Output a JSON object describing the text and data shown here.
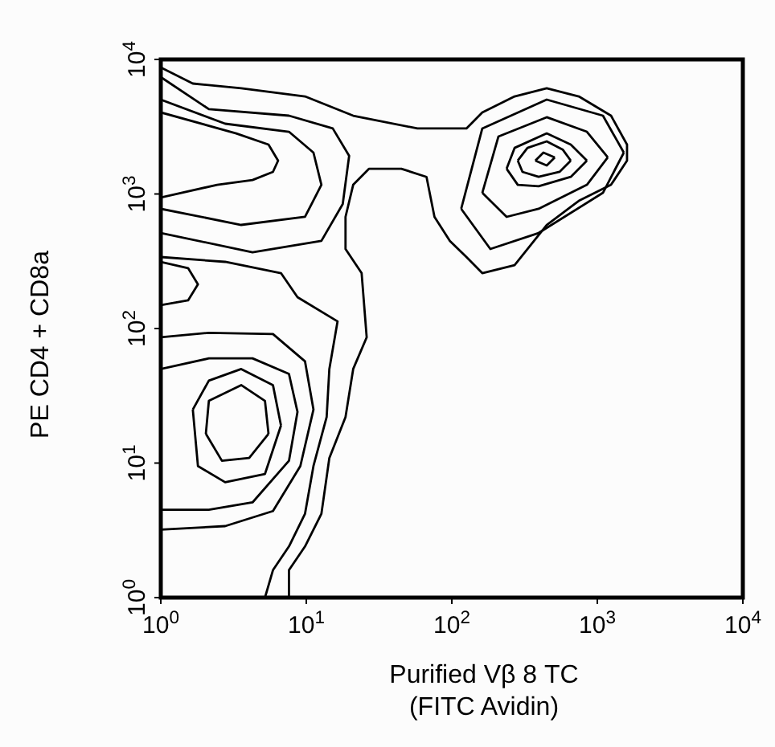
{
  "chart_data": {
    "type": "line",
    "xlabel": "Purified Vβ 8 TC\n(FITC Avidin)",
    "ylabel": "PE CD4 + CD8a",
    "log": "xy",
    "xlim": [
      1,
      10000
    ],
    "ylim": [
      1,
      10000
    ],
    "xticks": [
      {
        "value": 1,
        "label": "10$^{0}$"
      },
      {
        "value": 10,
        "label": "10$^{1}$"
      },
      {
        "value": 100,
        "label": "10$^{2}$"
      },
      {
        "value": 1000,
        "label": "10$^{3}$"
      },
      {
        "value": 10000,
        "label": "10$^{4}$"
      }
    ],
    "yticks": [
      {
        "value": 1,
        "label": "10$^{0}$"
      },
      {
        "value": 10,
        "label": "10$^{1}$"
      },
      {
        "value": 100,
        "label": "10$^{2}$"
      },
      {
        "value": 1000,
        "label": "10$^{3}$"
      },
      {
        "value": 10000,
        "label": "10$^{4}$"
      }
    ],
    "series": [
      {
        "color": "#000000",
        "x": [
          1,
          1.66,
          3.57,
          9.8,
          21,
          58,
          126,
          162,
          270,
          449,
          746,
          1242,
          1600,
          1600,
          1242,
          746,
          449,
          270,
          162,
          126,
          97,
          76,
          67,
          45,
          27,
          21,
          18.6,
          18.6,
          24,
          26,
          21,
          18.6,
          14.4,
          12.7,
          9.8,
          7.6,
          7.6
        ],
        "values": [
          8710,
          6620,
          6100,
          5310,
          3820,
          3070,
          3070,
          4040,
          5310,
          6100,
          5310,
          3820,
          2330,
          1770,
          1170,
          889,
          589,
          296,
          258,
          340,
          448,
          676,
          1340,
          1540,
          1540,
          1170,
          676,
          390,
          258,
          86,
          50,
          22,
          10.9,
          4.2,
          2.4,
          1.6,
          1
        ]
      },
      {
        "color": "#000000",
        "x": [
          1,
          2.77,
          6.7,
          8.7,
          16.4,
          14.4,
          13.8,
          11.2,
          9.8,
          7.6,
          5.9,
          5.2
        ],
        "values": [
          340,
          313,
          258,
          171,
          113,
          50,
          22,
          9.5,
          4.2,
          2.4,
          1.6,
          1
        ]
      },
      {
        "color": "#000000",
        "x": [
          1,
          2.14,
          7.6,
          15.2,
          19.7,
          17.8,
          12.7,
          4.27,
          1
        ],
        "values": [
          7390,
          4270,
          3820,
          3070,
          1920,
          842,
          448,
          369,
          513
        ]
      },
      {
        "color": "#000000",
        "x": [
          1,
          2.77,
          7.6,
          11.2,
          12.7,
          9.8,
          3.57,
          1
        ],
        "values": [
          5030,
          3330,
          2900,
          2030,
          1170,
          676,
          589,
          776
        ]
      },
      {
        "color": "#000000",
        "x": [
          1,
          3.3,
          5.5,
          6.4,
          5.9,
          4.27,
          2.44,
          1
        ],
        "values": [
          4040,
          2820,
          2330,
          1770,
          1460,
          1270,
          1170,
          940
        ]
      },
      {
        "color": "#000000",
        "x": [
          1,
          1.54,
          1.8,
          1.54,
          1
        ],
        "values": [
          313,
          281,
          213,
          162,
          149
        ]
      },
      {
        "color": "#000000",
        "x": [
          1,
          2.14,
          5.9,
          9.8,
          11.2,
          9.1,
          5.9,
          2.77,
          1
        ],
        "values": [
          86,
          93,
          91,
          57,
          25,
          9.5,
          4.4,
          3.4,
          3.2
        ]
      },
      {
        "color": "#000000",
        "x": [
          1,
          2.14,
          4.27,
          7.6,
          8.7,
          7.6,
          4.27,
          2.14,
          1
        ],
        "values": [
          50,
          60,
          60,
          46,
          24,
          10.4,
          5.1,
          4.5,
          4.5
        ]
      },
      {
        "color": "#000000",
        "x": [
          1.66,
          2.14,
          3.57,
          5.9,
          6.7
        ],
        "values": [
          25,
          41,
          50,
          38,
          19
        ]
      },
      {
        "color": "#000000",
        "x": [
          6.7,
          5.2,
          2.77,
          1.8,
          1.66
        ],
        "values": [
          19,
          8.3,
          7.2,
          9.5,
          25
        ]
      },
      {
        "color": "#000000",
        "x": [
          2.04,
          2.14,
          3.57,
          5.2,
          5.5
        ],
        "values": [
          16.5,
          29,
          38,
          29,
          16.5
        ]
      },
      {
        "color": "#000000",
        "x": [
          5.5,
          4.05,
          2.63,
          2.04
        ],
        "values": [
          16.5,
          10.9,
          10.4,
          16.5
        ]
      },
      {
        "color": "#000000",
        "x": [
          116,
          162,
          449,
          1093,
          1521
        ],
        "values": [
          776,
          3070,
          5030,
          3820,
          2030
        ]
      },
      {
        "color": "#000000",
        "x": [
          1521,
          1093,
          395,
          184,
          116
        ],
        "values": [
          2030,
          1020,
          513,
          390,
          776
        ]
      },
      {
        "color": "#000000",
        "x": [
          162,
          209,
          449,
          848,
          1180
        ],
        "values": [
          1020,
          2670,
          3720,
          2900,
          1870
        ]
      },
      {
        "color": "#000000",
        "x": [
          1180,
          848,
          395,
          238,
          162
        ],
        "values": [
          1870,
          1170,
          776,
          676,
          1020
        ]
      },
      {
        "color": "#000000",
        "x": [
          238,
          270,
          449,
          657,
          848
        ],
        "values": [
          1540,
          2200,
          2820,
          2330,
          1770
        ]
      },
      {
        "color": "#000000",
        "x": [
          848,
          657,
          395,
          284,
          238
        ],
        "values": [
          1770,
          1340,
          1140,
          1170,
          1540
        ]
      },
      {
        "color": "#000000",
        "x": [
          284,
          331,
          449,
          578,
          657
        ],
        "values": [
          1770,
          2200,
          2460,
          2140,
          1770
        ]
      },
      {
        "color": "#000000",
        "x": [
          657,
          550,
          395,
          306,
          284
        ],
        "values": [
          1770,
          1460,
          1340,
          1460,
          1770
        ]
      },
      {
        "color": "#000000",
        "x": [
          375,
          426,
          510
        ],
        "values": [
          1770,
          2030,
          1870
        ]
      },
      {
        "color": "#000000",
        "x": [
          510,
          449,
          375
        ],
        "values": [
          1870,
          1630,
          1770
        ]
      }
    ]
  }
}
